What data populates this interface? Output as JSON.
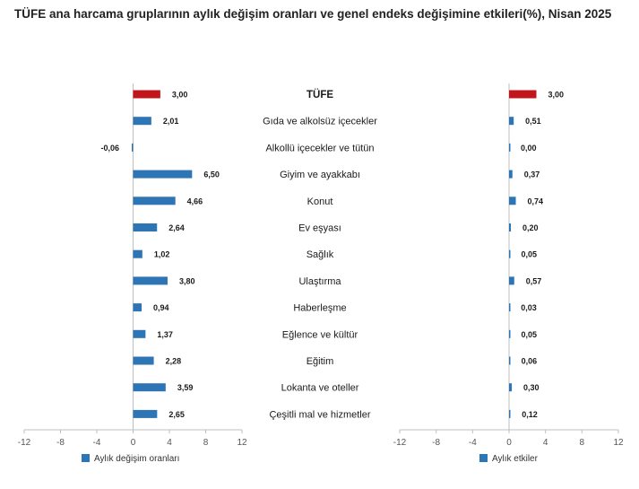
{
  "title": "TÜFE ana harcama gruplarının aylık değişim oranları ve genel endeks değişimine etkileri(%), Nisan 2025",
  "chart_data": [
    {
      "type": "bar",
      "orientation": "horizontal",
      "categories": [
        "TÜFE",
        "Gıda ve alkolsüz içecekler",
        "Alkollü içecekler ve tütün",
        "Giyim ve ayakkabı",
        "Konut",
        "Ev eşyası",
        "Sağlık",
        "Ulaştırma",
        "Haberleşme",
        "Eğlence ve kültür",
        "Eğitim",
        "Lokanta ve oteller",
        "Çeşitli mal ve hizmetler"
      ],
      "series": [
        {
          "name": "Aylık değişim oranları",
          "values": [
            3.0,
            2.01,
            -0.06,
            6.5,
            4.66,
            2.64,
            1.02,
            3.8,
            0.94,
            1.37,
            2.28,
            3.59,
            2.65
          ]
        }
      ],
      "value_labels": [
        "3,00",
        "2,01",
        "-0,06",
        "6,50",
        "4,66",
        "2,64",
        "1,02",
        "3,80",
        "0,94",
        "1,37",
        "2,28",
        "3,59",
        "2,65"
      ],
      "xlim": [
        -12,
        12
      ],
      "xticks": [
        "-12",
        "-8",
        "-4",
        "0",
        "4",
        "8",
        "12"
      ],
      "legend": "bottom-left",
      "highlight_index": 0
    },
    {
      "type": "bar",
      "orientation": "horizontal",
      "categories": [
        "TÜFE",
        "Gıda ve alkolsüz içecekler",
        "Alkollü içecekler ve tütün",
        "Giyim ve ayakkabı",
        "Konut",
        "Ev eşyası",
        "Sağlık",
        "Ulaştırma",
        "Haberleşme",
        "Eğlence ve kültür",
        "Eğitim",
        "Lokanta ve oteller",
        "Çeşitli mal ve hizmetler"
      ],
      "series": [
        {
          "name": "Aylık etkiler",
          "values": [
            3.0,
            0.51,
            0.0,
            0.37,
            0.74,
            0.2,
            0.05,
            0.57,
            0.03,
            0.05,
            0.06,
            0.3,
            0.12
          ]
        }
      ],
      "value_labels": [
        "3,00",
        "0,51",
        "0,00",
        "0,37",
        "0,74",
        "0,20",
        "0,05",
        "0,57",
        "0,03",
        "0,05",
        "0,06",
        "0,30",
        "0,12"
      ],
      "xlim": [
        -12,
        12
      ],
      "xticks": [
        "-12",
        "-8",
        "-4",
        "0",
        "4",
        "8",
        "12"
      ],
      "legend": "bottom-left",
      "highlight_index": 0
    }
  ],
  "colors": {
    "bar": "#2e75b6",
    "highlight": "#c0161c",
    "axis": "#bfbfbf"
  }
}
